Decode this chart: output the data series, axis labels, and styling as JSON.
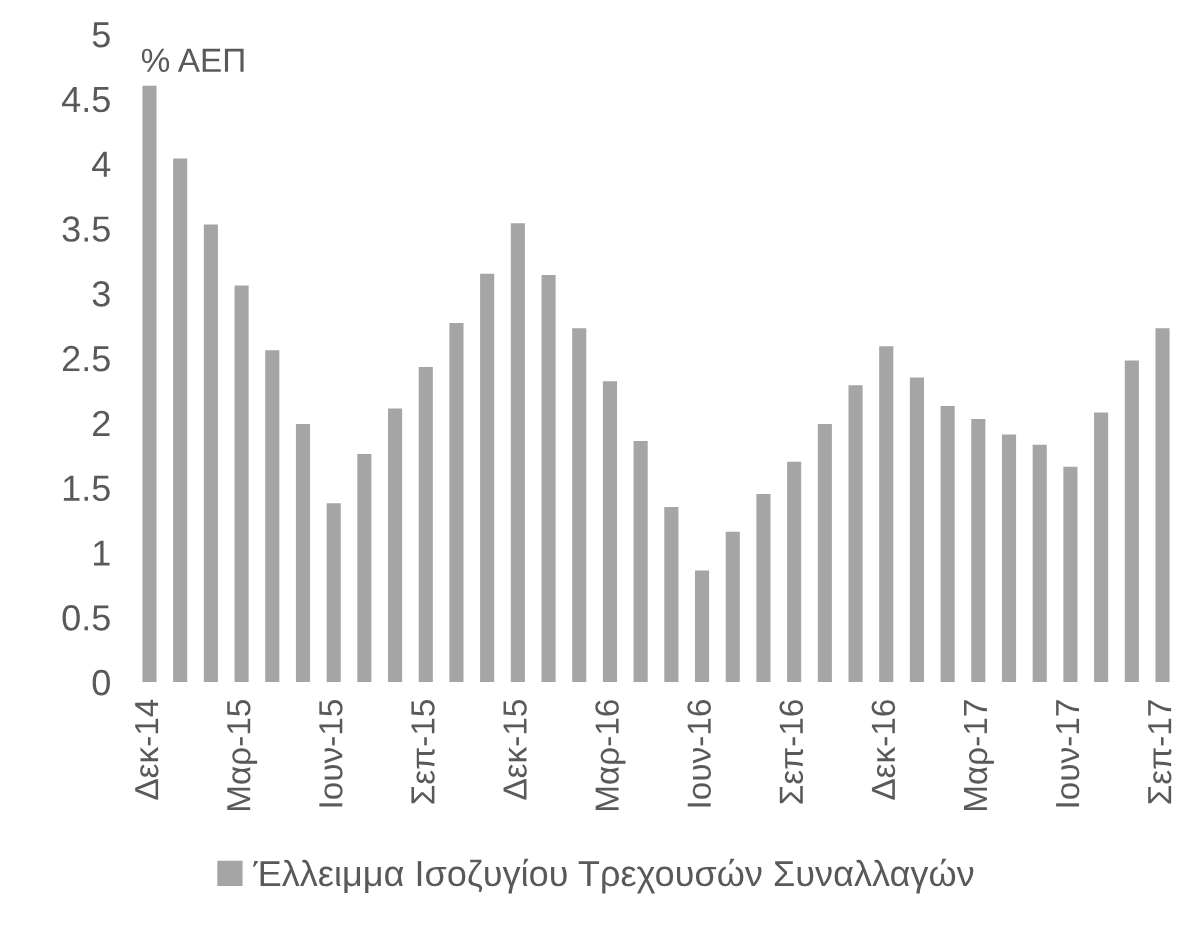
{
  "chart_data": {
    "type": "bar",
    "ylabel": "% ΑΕΠ",
    "categories": [
      "Δεκ-14",
      null,
      null,
      "Μαρ-15",
      null,
      null,
      "Ιουν-15",
      null,
      null,
      "Σεπ-15",
      null,
      null,
      "Δεκ-15",
      null,
      null,
      "Μαρ-16",
      null,
      null,
      "Ιουν-16",
      null,
      null,
      "Σεπ-16",
      null,
      null,
      "Δεκ-16",
      null,
      null,
      "Μαρ-17",
      null,
      null,
      "Ιουν-17",
      null,
      null,
      "Σεπ-17"
    ],
    "series": [
      {
        "name": "Έλλειμμα Ισοζυγίου Τρεχουσών Συναλλαγών",
        "color": "#a5a5a5",
        "values": [
          4.6,
          4.04,
          3.53,
          3.06,
          2.56,
          1.99,
          1.38,
          1.76,
          2.11,
          2.43,
          2.77,
          3.15,
          3.54,
          3.14,
          2.73,
          2.32,
          1.86,
          1.35,
          0.86,
          1.16,
          1.45,
          1.7,
          1.99,
          2.29,
          2.59,
          2.35,
          2.13,
          2.03,
          1.91,
          1.83,
          1.66,
          2.08,
          2.48,
          2.73
        ]
      }
    ],
    "ylim": [
      0,
      5
    ],
    "yticks": [
      0,
      0.5,
      1,
      1.5,
      2,
      2.5,
      3,
      3.5,
      4,
      4.5,
      5
    ],
    "grid": false,
    "legend": "bottom"
  }
}
